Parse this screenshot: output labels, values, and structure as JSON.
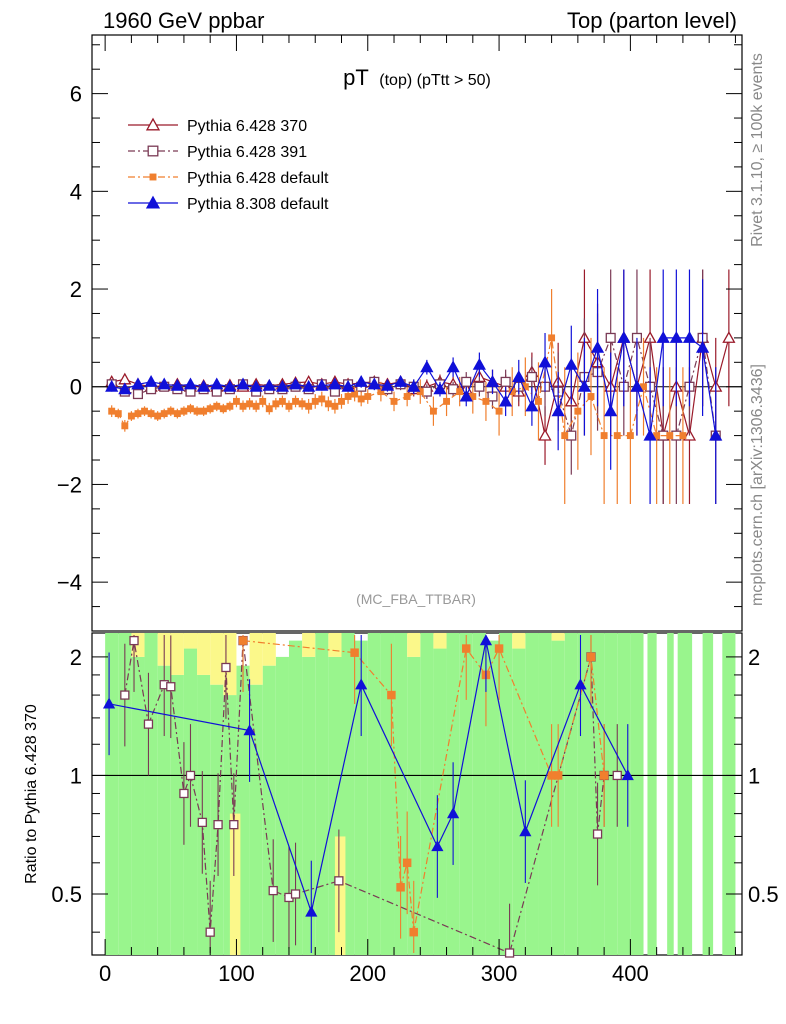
{
  "header": {
    "left": "1960 GeV ppbar",
    "right": "Top (parton level)"
  },
  "side_labels": {
    "rivet": "Rivet 3.1.10, ≥ 100k events",
    "mcplots": "mcplots.cern.ch [arXiv:1306.3436]"
  },
  "chart_data": {
    "type": "line",
    "title_main": "pT",
    "title_sub": "(top) (pTtt > 50)",
    "watermark": "(MC_FBA_TTBAR)",
    "xlabel": "",
    "ylabel": "",
    "ratio_ylabel": "Ratio to Pythia 6.428 370",
    "xlim": [
      -10,
      485
    ],
    "ylim": [
      -5,
      7.2
    ],
    "ratio_ylim": [
      0.35,
      2.3
    ],
    "x_ticks": [
      0,
      100,
      200,
      300,
      400
    ],
    "y_ticks": [
      -4,
      -2,
      0,
      2,
      4,
      6
    ],
    "ratio_ticks": [
      0.5,
      1,
      2
    ],
    "legend_position": "top-left",
    "series": [
      {
        "name": "Pythia 6.428 370",
        "color": "#9a1a2a",
        "marker": "open-triangle",
        "dash": "solid",
        "x": [
          5,
          15,
          25,
          35,
          45,
          55,
          65,
          75,
          85,
          95,
          105,
          115,
          125,
          135,
          145,
          155,
          165,
          175,
          185,
          195,
          205,
          215,
          225,
          235,
          245,
          255,
          265,
          275,
          285,
          295,
          305,
          315,
          325,
          335,
          345,
          355,
          365,
          375,
          385,
          395,
          405,
          415,
          425,
          435,
          445,
          455,
          465,
          475
        ],
        "y": [
          0.1,
          0.15,
          0.05,
          0.0,
          0.02,
          0.05,
          0.0,
          0.02,
          0.0,
          0.03,
          0.0,
          0.05,
          0.02,
          0.05,
          0.08,
          0.1,
          0.05,
          0.1,
          0.05,
          0.08,
          0.1,
          0.05,
          0.1,
          -0.05,
          0.0,
          0.1,
          0.05,
          -0.05,
          0.2,
          0.1,
          0.0,
          -0.1,
          0.3,
          -1.0,
          0.1,
          -0.3,
          1.0,
          0.5,
          0.0,
          1.0,
          0.0,
          1.0,
          -1.0,
          0.0,
          -1.0,
          1.0,
          0.0,
          1.0
        ],
        "err": [
          0.1,
          0.08,
          0.08,
          0.08,
          0.08,
          0.08,
          0.08,
          0.08,
          0.08,
          0.08,
          0.08,
          0.08,
          0.08,
          0.08,
          0.08,
          0.1,
          0.1,
          0.1,
          0.1,
          0.12,
          0.12,
          0.12,
          0.12,
          0.15,
          0.15,
          0.15,
          0.15,
          0.2,
          0.2,
          0.25,
          0.25,
          0.3,
          0.4,
          0.6,
          0.8,
          0.8,
          1.4,
          1.2,
          1.0,
          1.4,
          1.0,
          1.4,
          1.4,
          1.0,
          1.4,
          1.4,
          1.0,
          1.4
        ]
      },
      {
        "name": "Pythia 6.428 391",
        "color": "#7a3a55",
        "marker": "open-square",
        "dash": "dashdot",
        "x": [
          5,
          15,
          25,
          35,
          45,
          55,
          65,
          75,
          85,
          95,
          105,
          115,
          125,
          135,
          145,
          155,
          165,
          175,
          185,
          195,
          205,
          215,
          225,
          235,
          245,
          255,
          265,
          275,
          285,
          295,
          305,
          315,
          325,
          335,
          345,
          355,
          365,
          375,
          385,
          395,
          405,
          415,
          425,
          435,
          445,
          455,
          465
        ],
        "y": [
          0.05,
          -0.1,
          -0.15,
          -0.05,
          0.0,
          -0.05,
          -0.1,
          -0.05,
          -0.1,
          -0.05,
          0.05,
          -0.1,
          -0.05,
          -0.05,
          0.0,
          -0.05,
          0.05,
          -0.1,
          0.05,
          0.0,
          0.1,
          -0.05,
          0.05,
          0.0,
          -0.1,
          0.05,
          -0.05,
          0.1,
          0.0,
          -0.2,
          0.1,
          0.0,
          0.2,
          0.0,
          -0.1,
          -1.0,
          0.2,
          0.3,
          1.0,
          0.0,
          1.0,
          0.0,
          -1.0,
          -1.0,
          0.0,
          1.0,
          -1.0
        ],
        "err": [
          0.1,
          0.08,
          0.08,
          0.08,
          0.08,
          0.08,
          0.08,
          0.08,
          0.08,
          0.08,
          0.08,
          0.08,
          0.08,
          0.08,
          0.08,
          0.1,
          0.1,
          0.1,
          0.1,
          0.12,
          0.12,
          0.12,
          0.12,
          0.15,
          0.15,
          0.15,
          0.15,
          0.2,
          0.2,
          0.25,
          0.25,
          0.3,
          0.4,
          0.6,
          0.8,
          0.8,
          1.2,
          1.2,
          1.4,
          1.0,
          1.4,
          1.0,
          1.4,
          1.4,
          1.0,
          1.4,
          1.4
        ]
      },
      {
        "name": "Pythia 6.428 default",
        "color": "#f07f2e",
        "marker": "filled-square",
        "dash": "dashdot",
        "x": [
          5,
          10,
          15,
          20,
          25,
          30,
          35,
          40,
          45,
          50,
          55,
          60,
          65,
          70,
          75,
          80,
          85,
          90,
          95,
          100,
          105,
          110,
          115,
          120,
          125,
          130,
          135,
          140,
          145,
          150,
          155,
          160,
          165,
          170,
          175,
          180,
          185,
          190,
          195,
          200,
          210,
          220,
          230,
          240,
          250,
          260,
          270,
          280,
          290,
          300,
          310,
          320,
          330,
          340,
          350,
          360,
          370,
          380,
          390,
          400,
          410,
          420,
          430,
          440
        ],
        "y": [
          -0.5,
          -0.55,
          -0.8,
          -0.6,
          -0.55,
          -0.5,
          -0.55,
          -0.6,
          -0.55,
          -0.5,
          -0.55,
          -0.5,
          -0.45,
          -0.5,
          -0.5,
          -0.45,
          -0.4,
          -0.45,
          -0.4,
          -0.3,
          -0.4,
          -0.35,
          -0.4,
          -0.3,
          -0.45,
          -0.35,
          -0.3,
          -0.4,
          -0.3,
          -0.35,
          -0.4,
          -0.3,
          -0.25,
          -0.35,
          -0.4,
          -0.3,
          -0.2,
          -0.15,
          -0.25,
          -0.2,
          -0.1,
          -0.3,
          -0.2,
          -0.1,
          -0.5,
          -0.3,
          -0.1,
          -0.2,
          -0.3,
          -0.5,
          -0.1,
          0.0,
          -0.3,
          1.0,
          -1.0,
          -0.5,
          -0.2,
          -1.0,
          -1.0,
          -1.0,
          0.0,
          -1.0,
          -1.0,
          -1.0
        ],
        "err": [
          0.12,
          0.1,
          0.12,
          0.1,
          0.1,
          0.1,
          0.1,
          0.1,
          0.1,
          0.1,
          0.1,
          0.1,
          0.1,
          0.1,
          0.1,
          0.1,
          0.1,
          0.1,
          0.1,
          0.12,
          0.12,
          0.12,
          0.12,
          0.12,
          0.12,
          0.12,
          0.12,
          0.12,
          0.12,
          0.12,
          0.15,
          0.15,
          0.15,
          0.15,
          0.15,
          0.15,
          0.15,
          0.15,
          0.15,
          0.15,
          0.2,
          0.2,
          0.2,
          0.25,
          0.3,
          0.3,
          0.3,
          0.35,
          0.4,
          0.5,
          0.5,
          0.6,
          0.8,
          1.0,
          1.4,
          1.2,
          1.2,
          1.4,
          1.4,
          1.4,
          1.0,
          1.4,
          1.4,
          1.4
        ]
      },
      {
        "name": "Pythia 8.308 default",
        "color": "#1010d8",
        "marker": "filled-triangle",
        "dash": "solid",
        "x": [
          5,
          15,
          25,
          35,
          45,
          55,
          65,
          75,
          85,
          95,
          105,
          115,
          125,
          135,
          145,
          155,
          165,
          175,
          185,
          195,
          205,
          215,
          225,
          235,
          245,
          255,
          265,
          275,
          285,
          295,
          305,
          315,
          325,
          335,
          345,
          355,
          365,
          375,
          385,
          395,
          405,
          415,
          425,
          435,
          445,
          455,
          465
        ],
        "y": [
          0.0,
          -0.05,
          0.05,
          0.1,
          0.05,
          0.02,
          0.05,
          0.0,
          0.05,
          0.0,
          0.05,
          0.0,
          0.02,
          0.0,
          0.05,
          0.0,
          0.02,
          0.05,
          0.0,
          0.1,
          0.05,
          0.02,
          0.1,
          0.0,
          0.4,
          -0.05,
          0.4,
          -0.2,
          0.45,
          0.1,
          -0.3,
          0.2,
          -0.4,
          0.5,
          -0.5,
          0.45,
          0.0,
          0.8,
          -0.5,
          1.0,
          0.0,
          -1.0,
          1.0,
          1.0,
          1.0,
          0.8,
          -1.0
        ],
        "err": [
          0.1,
          0.08,
          0.08,
          0.08,
          0.08,
          0.08,
          0.08,
          0.08,
          0.08,
          0.08,
          0.08,
          0.08,
          0.08,
          0.08,
          0.08,
          0.1,
          0.1,
          0.1,
          0.1,
          0.12,
          0.12,
          0.12,
          0.12,
          0.15,
          0.15,
          0.15,
          0.2,
          0.2,
          0.25,
          0.25,
          0.3,
          0.35,
          0.4,
          0.6,
          0.8,
          0.8,
          1.0,
          1.2,
          1.2,
          1.4,
          1.0,
          1.4,
          1.4,
          1.4,
          1.4,
          1.4,
          1.4
        ]
      }
    ],
    "ratio_bands": {
      "green": [
        [
          0,
          10,
          0.35,
          2.3
        ],
        [
          10,
          20,
          0.35,
          2.3
        ],
        [
          20,
          30,
          0.35,
          2.0
        ],
        [
          30,
          40,
          0.35,
          2.3
        ],
        [
          40,
          50,
          0.35,
          1.9
        ],
        [
          50,
          60,
          0.35,
          1.8
        ],
        [
          60,
          70,
          0.35,
          2.1
        ],
        [
          70,
          80,
          0.35,
          1.8
        ],
        [
          80,
          90,
          0.35,
          1.7
        ],
        [
          90,
          100,
          0.35,
          1.6
        ],
        [
          100,
          110,
          0.35,
          1.9
        ],
        [
          110,
          120,
          0.35,
          1.7
        ],
        [
          120,
          130,
          0.35,
          1.9
        ],
        [
          130,
          140,
          0.35,
          2.0
        ],
        [
          140,
          150,
          0.35,
          2.2
        ],
        [
          150,
          160,
          0.35,
          2.0
        ],
        [
          160,
          170,
          0.35,
          2.3
        ],
        [
          170,
          180,
          0.35,
          2.0
        ],
        [
          180,
          190,
          0.35,
          2.3
        ],
        [
          190,
          200,
          0.35,
          2.2
        ],
        [
          200,
          210,
          0.35,
          2.3
        ],
        [
          210,
          220,
          0.35,
          2.3
        ],
        [
          220,
          230,
          0.35,
          2.3
        ],
        [
          230,
          240,
          0.35,
          2.0
        ],
        [
          240,
          250,
          0.35,
          2.3
        ],
        [
          250,
          260,
          0.35,
          2.1
        ],
        [
          260,
          270,
          0.35,
          2.3
        ],
        [
          270,
          280,
          0.35,
          2.3
        ],
        [
          280,
          290,
          0.35,
          2.3
        ],
        [
          290,
          300,
          0.35,
          2.2
        ],
        [
          300,
          310,
          0.35,
          2.3
        ],
        [
          310,
          320,
          0.35,
          2.1
        ],
        [
          320,
          330,
          0.35,
          2.3
        ],
        [
          330,
          340,
          0.35,
          2.3
        ],
        [
          340,
          350,
          0.35,
          2.2
        ],
        [
          350,
          360,
          0.35,
          2.3
        ],
        [
          360,
          370,
          0.35,
          2.3
        ],
        [
          370,
          380,
          0.35,
          2.3
        ],
        [
          380,
          390,
          0.35,
          2.3
        ],
        [
          390,
          400,
          0.35,
          2.3
        ],
        [
          400,
          410,
          0.35,
          2.3
        ],
        [
          413,
          420,
          0.35,
          2.3
        ],
        [
          428,
          433,
          0.35,
          2.3
        ],
        [
          436,
          447,
          0.35,
          2.3
        ],
        [
          455,
          463,
          0.35,
          2.3
        ],
        [
          470,
          480,
          0.35,
          2.3
        ]
      ],
      "yellow": [
        [
          20,
          30,
          2.0,
          2.3
        ],
        [
          40,
          50,
          1.9,
          2.3
        ],
        [
          50,
          60,
          1.8,
          2.3
        ],
        [
          60,
          70,
          2.1,
          2.3
        ],
        [
          70,
          80,
          1.8,
          2.3
        ],
        [
          80,
          90,
          1.7,
          2.3
        ],
        [
          90,
          100,
          1.6,
          2.3
        ],
        [
          110,
          120,
          1.7,
          2.3
        ],
        [
          120,
          130,
          1.9,
          2.3
        ],
        [
          150,
          160,
          2.0,
          2.3
        ],
        [
          170,
          180,
          2.0,
          2.3
        ],
        [
          230,
          240,
          2.0,
          2.3
        ],
        [
          250,
          260,
          2.1,
          2.3
        ],
        [
          310,
          320,
          2.1,
          2.3
        ],
        [
          340,
          350,
          2.2,
          2.3
        ],
        [
          95,
          103,
          0.35,
          0.8
        ],
        [
          175,
          183,
          0.35,
          0.7
        ]
      ]
    },
    "ratio_series": [
      {
        "name": "Pythia 6.428 391",
        "color": "#7a3a55",
        "marker": "open-square",
        "dash": "dashdot",
        "x": [
          15,
          22,
          33,
          45,
          50,
          60,
          65,
          74,
          80,
          86,
          92,
          98,
          105,
          128,
          140,
          145,
          178,
          308,
          370,
          375,
          380,
          390
        ],
        "y": [
          1.6,
          2.2,
          1.35,
          1.7,
          1.68,
          0.9,
          1.0,
          0.76,
          0.4,
          0.75,
          1.88,
          0.75,
          2.2,
          0.51,
          0.49,
          0.5,
          0.54,
          0.35,
          2.0,
          0.71,
          1.0,
          1.0
        ]
      },
      {
        "name": "Pythia 6.428 default",
        "color": "#f07f2e",
        "marker": "filled-square",
        "dash": "dashdot",
        "x": [
          105,
          190,
          218,
          225,
          230,
          235,
          275,
          290,
          300,
          340,
          345,
          370,
          380
        ],
        "y": [
          2.2,
          2.05,
          1.6,
          0.52,
          0.6,
          0.4,
          2.1,
          1.8,
          2.1,
          1.0,
          1.0,
          2.0,
          1.0
        ]
      },
      {
        "name": "Pythia 8.308 default",
        "color": "#1010d8",
        "marker": "filled-triangle",
        "dash": "solid",
        "x": [
          3,
          110,
          157,
          195,
          253,
          265,
          290,
          320,
          362,
          398
        ],
        "y": [
          1.52,
          1.3,
          0.45,
          1.7,
          0.66,
          0.8,
          2.2,
          0.72,
          1.7,
          1.0
        ]
      }
    ]
  }
}
